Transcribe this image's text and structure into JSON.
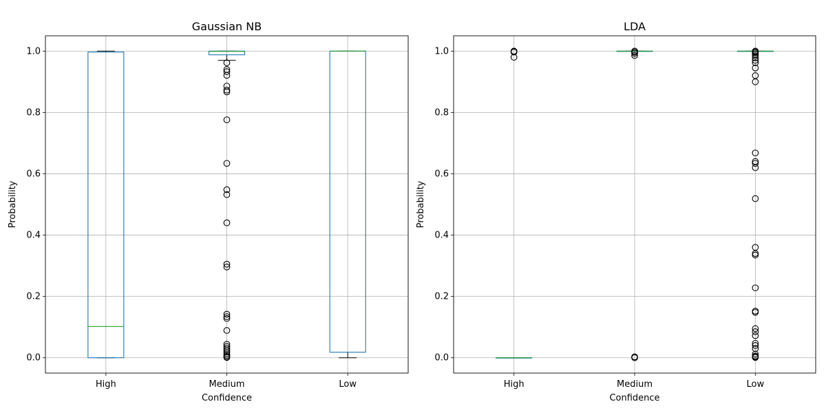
{
  "chart_data": [
    {
      "type": "box",
      "title": "Gaussian NB",
      "xlabel": "Confidence",
      "ylabel": "Probability",
      "categories": [
        "High",
        "Medium",
        "Low"
      ],
      "ylim": [
        -0.05,
        1.05
      ],
      "yticks": [
        "0.0",
        "0.2",
        "0.4",
        "0.6",
        "0.8",
        "1.0"
      ],
      "grid": true,
      "boxes": [
        {
          "category": "High",
          "whisker_low": 0.0,
          "q1": 0.0,
          "median": 0.102,
          "q3": 0.997,
          "whisker_high": 1.0,
          "fliers": []
        },
        {
          "category": "Medium",
          "whisker_low": 0.97,
          "q1": 0.988,
          "median": 0.999,
          "q3": 1.0,
          "whisker_high": 1.0,
          "fliers": [
            0.962,
            0.94,
            0.933,
            0.921,
            0.886,
            0.873,
            0.867,
            0.776,
            0.634,
            0.548,
            0.532,
            0.44,
            0.305,
            0.296,
            0.142,
            0.134,
            0.128,
            0.089,
            0.044,
            0.037,
            0.031,
            0.025,
            0.019,
            0.013,
            0.008,
            0.004,
            0.001
          ]
        },
        {
          "category": "Low",
          "whisker_low": 0.0,
          "q1": 0.018,
          "median": 1.0,
          "q3": 1.0,
          "whisker_high": 1.0,
          "fliers": []
        }
      ]
    },
    {
      "type": "box",
      "title": "LDA",
      "xlabel": "Confidence",
      "ylabel": "Probability",
      "categories": [
        "High",
        "Medium",
        "Low"
      ],
      "ylim": [
        -0.05,
        1.05
      ],
      "yticks": [
        "0.0",
        "0.2",
        "0.4",
        "0.6",
        "0.8",
        "1.0"
      ],
      "grid": true,
      "boxes": [
        {
          "category": "High",
          "whisker_low": 0.0,
          "q1": 0.0,
          "median": 0.0,
          "q3": 0.0,
          "whisker_high": 0.0,
          "fliers": [
            1.0,
            0.999,
            0.997,
            0.98
          ]
        },
        {
          "category": "Medium",
          "whisker_low": 1.0,
          "q1": 1.0,
          "median": 1.0,
          "q3": 1.0,
          "whisker_high": 1.0,
          "fliers": [
            1.0,
            0.997,
            0.993,
            0.986,
            0.003,
            0.0
          ]
        },
        {
          "category": "Low",
          "whisker_low": 1.0,
          "q1": 1.0,
          "median": 1.0,
          "q3": 1.0,
          "whisker_high": 1.0,
          "fliers": [
            1.0,
            0.998,
            0.995,
            0.99,
            0.985,
            0.978,
            0.97,
            0.962,
            0.945,
            0.92,
            0.9,
            0.668,
            0.64,
            0.634,
            0.62,
            0.519,
            0.36,
            0.34,
            0.335,
            0.228,
            0.152,
            0.148,
            0.095,
            0.085,
            0.072,
            0.047,
            0.04,
            0.03,
            0.012,
            0.006,
            0.003,
            0.001
          ]
        }
      ]
    }
  ],
  "colors": {
    "box": "#1f77b4",
    "median": "#2ca02c",
    "grid": "#b0b0b0",
    "whisker": "#000000",
    "flier": "#000000"
  }
}
